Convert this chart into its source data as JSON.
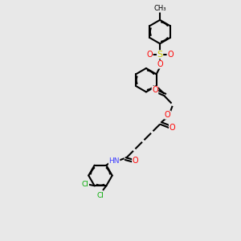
{
  "bg_color": "#e8e8e8",
  "bond_color": "#000000",
  "atom_colors": {
    "O": "#ff0000",
    "S": "#cccc00",
    "N": "#4040ff",
    "Cl": "#00aa00",
    "C": "#000000",
    "H": "#555555"
  },
  "figsize": [
    3.0,
    3.0
  ],
  "dpi": 100
}
